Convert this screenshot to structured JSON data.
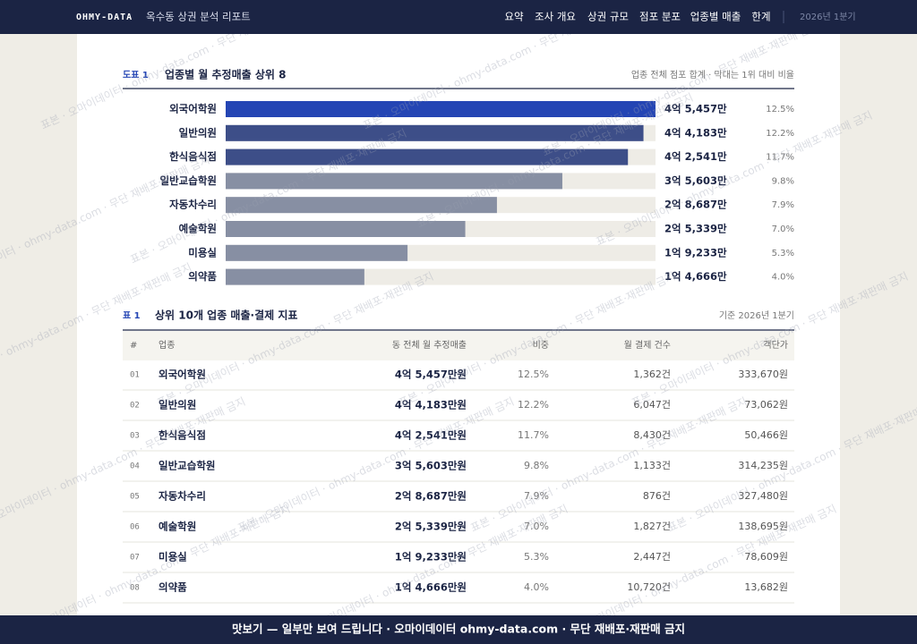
{
  "header": {
    "logo": "OHMY-DATA",
    "title": "옥수동 상권 분석 리포트",
    "nav": [
      "요약",
      "조사 개요",
      "상권 규모",
      "점포 분포",
      "업종별 매출",
      "한계"
    ],
    "period": "2026년 1분기"
  },
  "chart_data": {
    "type": "bar",
    "orientation": "horizontal",
    "label": "도표 1",
    "title": "업종별 월 추정매출 상위 8",
    "note": "업종 전체 점포 합계 · 막대는 1위 대비 비율",
    "categories": [
      "외국어학원",
      "일반의원",
      "한식음식점",
      "일반교습학원",
      "자동차수리",
      "예술학원",
      "미용실",
      "의약품"
    ],
    "values": [
      45457,
      44183,
      42541,
      35603,
      28687,
      25339,
      19233,
      14666
    ],
    "value_labels": [
      "4억 5,457만",
      "4억 4,183만",
      "4억 2,541만",
      "3억 5,603만",
      "2억 8,687만",
      "2억 5,339만",
      "1억 9,233만",
      "1억 4,666만"
    ],
    "shares": [
      12.5,
      12.2,
      11.7,
      9.8,
      7.9,
      7.0,
      5.3,
      4.0
    ],
    "share_labels": [
      "12.5%",
      "12.2%",
      "11.7%",
      "9.8%",
      "7.9%",
      "7.0%",
      "5.3%",
      "4.0%"
    ],
    "colors": [
      "#2445b4",
      "#3d4e88",
      "#3d4e88",
      "#878fa3",
      "#878fa3",
      "#878fa3",
      "#878fa3",
      "#878fa3"
    ]
  },
  "table": {
    "label": "표 1",
    "title": "상위 10개 업종 매출·결제 지표",
    "note": "기준 2026년 1분기",
    "headers": [
      "#",
      "업종",
      "동 전체 월 추정매출",
      "비중",
      "월 결제 건수",
      "객단가"
    ],
    "rows": [
      [
        "01",
        "외국어학원",
        "4억 5,457만원",
        "12.5%",
        "1,362건",
        "333,670원"
      ],
      [
        "02",
        "일반의원",
        "4억 4,183만원",
        "12.2%",
        "6,047건",
        "73,062원"
      ],
      [
        "03",
        "한식음식점",
        "4억 2,541만원",
        "11.7%",
        "8,430건",
        "50,466원"
      ],
      [
        "04",
        "일반교습학원",
        "3억 5,603만원",
        "9.8%",
        "1,133건",
        "314,235원"
      ],
      [
        "05",
        "자동차수리",
        "2억 8,687만원",
        "7.9%",
        "876건",
        "327,480원"
      ],
      [
        "06",
        "예술학원",
        "2억 5,339만원",
        "7.0%",
        "1,827건",
        "138,695원"
      ],
      [
        "07",
        "미용실",
        "1억 9,233만원",
        "5.3%",
        "2,447건",
        "78,609원"
      ],
      [
        "08",
        "의약품",
        "1억 4,666만원",
        "4.0%",
        "10,720건",
        "13,682원"
      ]
    ]
  },
  "watermark": "표본 · 오마이데이터 · ohmy-data.com · 무단 재배포·재판매 금지",
  "banner": "맛보기 — 일부만 보여 드립니다 · 오마이데이터 ohmy-data.com · 무단 재배포·재판매 금지"
}
